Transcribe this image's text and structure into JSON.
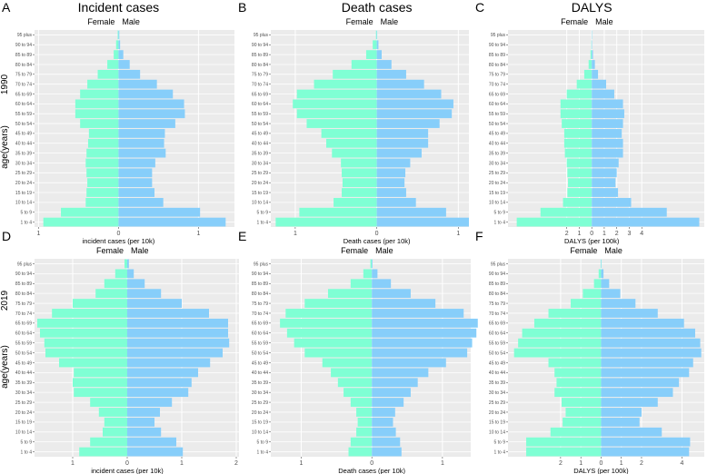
{
  "colors": {
    "female": "#7fffd4",
    "male": "#87cefa",
    "panel_bg": "#ebebeb",
    "grid": "#ffffff"
  },
  "row_labels": {
    "top": "1990",
    "bottom": "2019"
  },
  "y_axis_title": "age(years)",
  "sex_labels": {
    "female": "Female",
    "male": "Male"
  },
  "chart_data": [
    {
      "letter": "A",
      "title": "Incident cases",
      "type": "bar",
      "orientation": "horizontal-pyramid",
      "year": "1990",
      "xlabel": "incident cases (per 10k)",
      "xlim": [
        -1.05,
        1.45
      ],
      "xticks": [
        -1,
        0,
        1
      ],
      "xtick_labels": [
        "1",
        "0",
        "1"
      ],
      "categories": [
        "1 to 4",
        "5 to 9",
        "10 to 14",
        "15 to 19",
        "20 to 24",
        "25 to 29",
        "30 to 34",
        "35 to 39",
        "40 to 44",
        "45 to 49",
        "50 to 54",
        "55 to 59",
        "60 to 64",
        "65 to 69",
        "70 to 74",
        "75 to 79",
        "80 to 84",
        "85 to 89",
        "90 to 94",
        "95 plus"
      ],
      "series": [
        {
          "name": "Female",
          "values": [
            -0.94,
            -0.72,
            -0.41,
            -0.4,
            -0.39,
            -0.4,
            -0.41,
            -0.4,
            -0.38,
            -0.37,
            -0.48,
            -0.54,
            -0.54,
            -0.48,
            -0.39,
            -0.26,
            -0.14,
            -0.06,
            -0.03,
            -0.01
          ]
        },
        {
          "name": "Male",
          "values": [
            1.34,
            1.02,
            0.56,
            0.45,
            0.42,
            0.42,
            0.46,
            0.59,
            0.57,
            0.58,
            0.71,
            0.83,
            0.82,
            0.68,
            0.48,
            0.27,
            0.14,
            0.06,
            0.02,
            0.01
          ]
        }
      ]
    },
    {
      "letter": "B",
      "title": "Death cases",
      "type": "bar",
      "orientation": "horizontal-pyramid",
      "year": "1990",
      "xlabel": "Death cases (per 10k)",
      "xlim": [
        -1.3,
        1.13
      ],
      "xticks": [
        -1,
        0,
        1
      ],
      "xtick_labels": [
        "1",
        "0",
        "1"
      ],
      "categories": [
        "1 to 4",
        "5 to 9",
        "10 to 14",
        "15 to 19",
        "20 to 24",
        "25 to 29",
        "30 to 34",
        "35 to 39",
        "40 to 44",
        "45 to 49",
        "50 to 54",
        "55 to 59",
        "60 to 64",
        "65 to 69",
        "70 to 74",
        "75 to 79",
        "80 to 84",
        "85 to 89",
        "90 to 94",
        "95 plus"
      ],
      "series": [
        {
          "name": "Female",
          "values": [
            -1.24,
            -0.95,
            -0.53,
            -0.43,
            -0.42,
            -0.43,
            -0.44,
            -0.55,
            -0.62,
            -0.68,
            -0.86,
            -0.98,
            -1.03,
            -0.98,
            -0.77,
            -0.54,
            -0.31,
            -0.13,
            -0.05,
            -0.01
          ]
        },
        {
          "name": "Male",
          "values": [
            1.13,
            0.85,
            0.48,
            0.36,
            0.34,
            0.35,
            0.41,
            0.55,
            0.63,
            0.63,
            0.77,
            0.92,
            0.94,
            0.79,
            0.58,
            0.36,
            0.18,
            0.06,
            0.02,
            0.005
          ]
        }
      ]
    },
    {
      "letter": "C",
      "title": "DALYS",
      "type": "bar",
      "orientation": "horizontal-pyramid",
      "year": "1990",
      "xlabel": "DALYS (per 100k)",
      "xlim": [
        -6.7,
        9.0
      ],
      "xticks": [
        -2,
        -1,
        0,
        1,
        2,
        3,
        4
      ],
      "xtick_labels": [
        "2",
        "1",
        "0",
        "1",
        "2",
        "3",
        "4"
      ],
      "categories": [
        "1 to 4",
        "5 to 9",
        "10 to 14",
        "15 to 19",
        "20 to 24",
        "25 to 29",
        "30 to 34",
        "35 to 39",
        "40 to 44",
        "45 to 49",
        "50 to 54",
        "55 to 59",
        "60 to 64",
        "65 to 69",
        "70 to 74",
        "75 to 79",
        "80 to 84",
        "85 to 89",
        "90 to 94",
        "95 plus"
      ],
      "series": [
        {
          "name": "Female",
          "values": [
            -6.0,
            -4.1,
            -2.3,
            -1.95,
            -1.9,
            -1.95,
            -2.0,
            -2.15,
            -2.2,
            -2.2,
            -2.4,
            -2.5,
            -2.5,
            -2.0,
            -1.2,
            -0.6,
            -0.25,
            -0.1,
            -0.03,
            -0.01
          ]
        },
        {
          "name": "Male",
          "values": [
            8.6,
            6.0,
            3.15,
            2.1,
            1.9,
            2.0,
            2.15,
            2.5,
            2.5,
            2.4,
            2.5,
            2.6,
            2.5,
            1.8,
            1.15,
            0.5,
            0.25,
            0.1,
            0.03,
            0.01
          ]
        }
      ]
    },
    {
      "letter": "D",
      "title": "",
      "type": "bar",
      "orientation": "horizontal-pyramid",
      "year": "2019",
      "xlabel": "incident cases (per 10k)",
      "xlim": [
        -1.7,
        2.05
      ],
      "xticks": [
        -1,
        0,
        1,
        2
      ],
      "xtick_labels": [
        "1",
        "0",
        "1",
        "2"
      ],
      "categories": [
        "1 to 4",
        "5 to 9",
        "10 to 14",
        "15 to 19",
        "20 to 24",
        "25 to 29",
        "30 to 34",
        "35 to 39",
        "40 to 44",
        "45 to 49",
        "50 to 54",
        "55 to 59",
        "60 to 64",
        "65 to 69",
        "70 to 74",
        "75 to 79",
        "80 to 84",
        "85 to 89",
        "90 to 94",
        "95 plus"
      ],
      "series": [
        {
          "name": "Female",
          "values": [
            -0.88,
            -0.68,
            -0.45,
            -0.42,
            -0.52,
            -0.68,
            -0.98,
            -1.0,
            -0.98,
            -1.25,
            -1.5,
            -1.52,
            -1.6,
            -1.65,
            -1.38,
            -1.0,
            -0.58,
            -0.42,
            -0.22,
            -0.05
          ]
        },
        {
          "name": "Male",
          "values": [
            1.02,
            0.9,
            0.62,
            0.5,
            0.6,
            0.82,
            1.12,
            1.18,
            1.3,
            1.52,
            1.75,
            1.87,
            1.85,
            1.85,
            1.5,
            1.0,
            0.62,
            0.32,
            0.12,
            0.03
          ]
        }
      ]
    },
    {
      "letter": "E",
      "title": "",
      "type": "bar",
      "orientation": "horizontal-pyramid",
      "year": "2019",
      "xlabel": "Death cases (per 10k)",
      "xlim": [
        -1.43,
        1.4
      ],
      "xticks": [
        -1,
        0,
        1
      ],
      "xtick_labels": [
        "1",
        "0",
        "1"
      ],
      "categories": [
        "1 to 4",
        "5 to 9",
        "10 to 14",
        "15 to 19",
        "20 to 24",
        "25 to 29",
        "30 to 34",
        "35 to 39",
        "40 to 44",
        "45 to 49",
        "50 to 54",
        "55 to 59",
        "60 to 64",
        "65 to 69",
        "70 to 74",
        "75 to 79",
        "80 to 84",
        "85 to 89",
        "90 to 94",
        "95 plus"
      ],
      "series": [
        {
          "name": "Female",
          "values": [
            -0.33,
            -0.3,
            -0.22,
            -0.2,
            -0.22,
            -0.3,
            -0.4,
            -0.48,
            -0.58,
            -0.7,
            -0.95,
            -1.1,
            -1.2,
            -1.3,
            -1.22,
            -0.95,
            -0.62,
            -0.3,
            -0.12,
            -0.02
          ]
        },
        {
          "name": "Male",
          "values": [
            0.42,
            0.4,
            0.34,
            0.3,
            0.33,
            0.45,
            0.55,
            0.65,
            0.8,
            1.05,
            1.35,
            1.42,
            1.48,
            1.5,
            1.3,
            0.9,
            0.55,
            0.27,
            0.08,
            0.01
          ]
        }
      ]
    },
    {
      "letter": "F",
      "title": "",
      "type": "bar",
      "orientation": "horizontal-pyramid",
      "year": "2019",
      "xlabel": "DALYS (per 100k)",
      "xlim": [
        -4.6,
        5.1
      ],
      "xticks": [
        -2,
        -1,
        0,
        1,
        2,
        4
      ],
      "xtick_labels": [
        "2",
        "1",
        "0",
        "1",
        "2",
        "4"
      ],
      "categories": [
        "1 to 4",
        "5 to 9",
        "10 to 14",
        "15 to 19",
        "20 to 24",
        "25 to 29",
        "30 to 34",
        "35 to 39",
        "40 to 44",
        "45 to 49",
        "50 to 54",
        "55 to 59",
        "60 to 64",
        "65 to 69",
        "70 to 74",
        "75 to 79",
        "80 to 84",
        "85 to 89",
        "90 to 94",
        "95 plus"
      ],
      "series": [
        {
          "name": "Female",
          "values": [
            -3.7,
            -3.7,
            -2.5,
            -1.9,
            -1.75,
            -1.95,
            -2.3,
            -2.2,
            -2.3,
            -2.6,
            -4.3,
            -4.1,
            -3.9,
            -3.3,
            -2.6,
            -1.5,
            -0.9,
            -0.35,
            -0.12,
            -0.02
          ]
        },
        {
          "name": "Male",
          "values": [
            4.35,
            4.4,
            3.0,
            1.9,
            2.0,
            2.8,
            3.55,
            3.85,
            4.35,
            4.55,
            4.95,
            4.9,
            4.65,
            4.1,
            2.8,
            1.7,
            0.95,
            0.4,
            0.12,
            0.02
          ]
        }
      ]
    }
  ]
}
